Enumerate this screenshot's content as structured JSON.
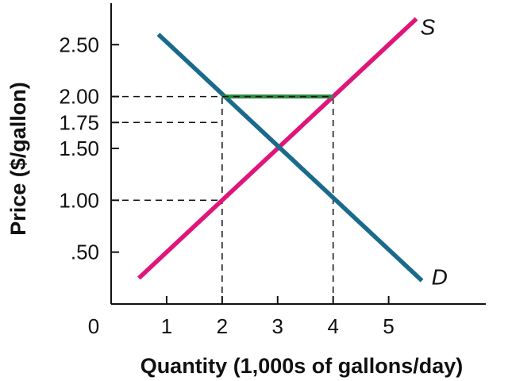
{
  "chart_data": {
    "type": "line",
    "title": "",
    "xlabel": "Quantity (1,000s of gallons/day)",
    "ylabel": "Price ($/gallon)",
    "origin_label": "0",
    "xlim": [
      0,
      6.75
    ],
    "ylim": [
      0,
      2.9
    ],
    "x_ticks": [
      {
        "value": 1,
        "label": "1"
      },
      {
        "value": 2,
        "label": "2"
      },
      {
        "value": 3,
        "label": "3"
      },
      {
        "value": 4,
        "label": "4"
      },
      {
        "value": 5,
        "label": "5"
      }
    ],
    "y_ticks": [
      {
        "value": 0.5,
        "label": ".50"
      },
      {
        "value": 1.0,
        "label": "1.00"
      },
      {
        "value": 1.5,
        "label": "1.50"
      },
      {
        "value": 1.75,
        "label": "1.75"
      },
      {
        "value": 2.0,
        "label": "2.00"
      },
      {
        "value": 2.5,
        "label": "2.50"
      }
    ],
    "series": [
      {
        "name": "S",
        "color": "#e0157a",
        "points": [
          [
            0.5,
            0.25
          ],
          [
            5.5,
            2.75
          ]
        ]
      },
      {
        "name": "D",
        "color": "#1a6a8c",
        "points": [
          [
            0.85,
            2.6
          ],
          [
            5.6,
            0.225
          ]
        ]
      }
    ],
    "highlight": {
      "color": "#2e8b3e",
      "from": [
        2,
        2.0
      ],
      "to": [
        4,
        2.0
      ]
    },
    "guides": [
      {
        "from": [
          0,
          2.0
        ],
        "to": [
          4,
          2.0
        ]
      },
      {
        "from": [
          0,
          1.75
        ],
        "to": [
          2,
          1.75
        ]
      },
      {
        "from": [
          0,
          1.0
        ],
        "to": [
          2,
          1.0
        ]
      },
      {
        "from": [
          2,
          0
        ],
        "to": [
          2,
          2.0
        ]
      },
      {
        "from": [
          4,
          0
        ],
        "to": [
          4,
          2.0
        ]
      }
    ]
  }
}
